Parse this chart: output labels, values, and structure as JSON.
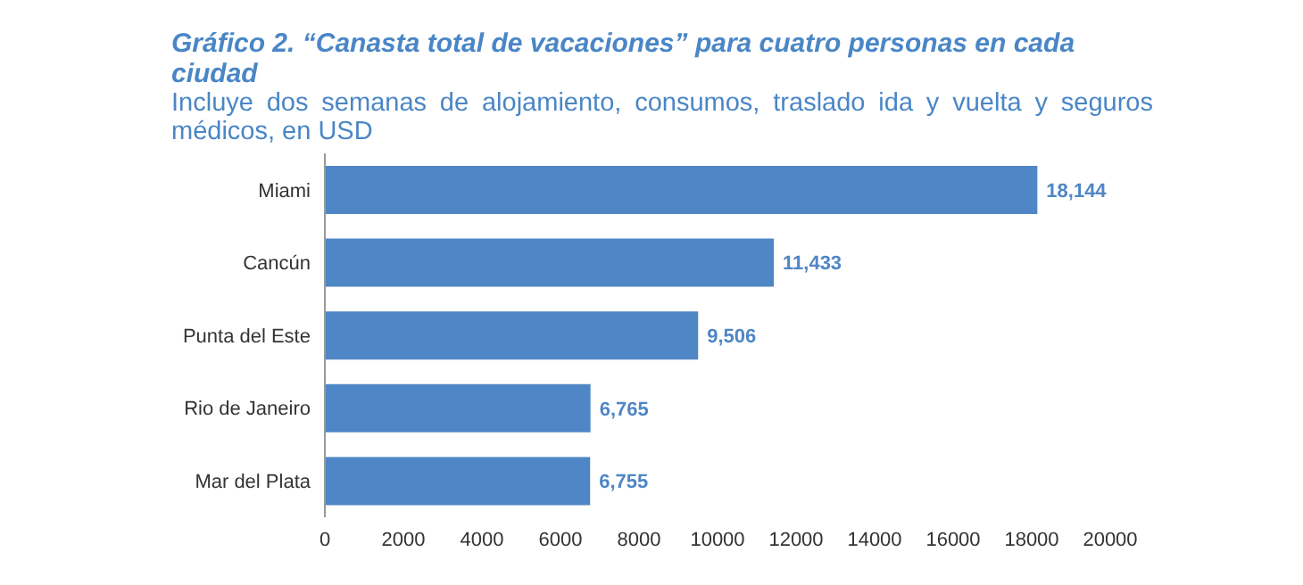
{
  "chart_data": {
    "type": "bar",
    "orientation": "horizontal",
    "title": "Gráfico 2. “Canasta total de vacaciones” para cuatro personas en cada ciudad",
    "subtitle": "Incluye dos semanas de alojamiento, consumos, traslado ida y vuelta y seguros médicos, en USD",
    "categories": [
      "Miami",
      "Cancún",
      "Punta del Este",
      "Rio de Janeiro",
      "Mar del Plata"
    ],
    "values": [
      18144,
      11433,
      9506,
      6765,
      6755
    ],
    "value_labels": [
      "18,144",
      "11,433",
      "9,506",
      "6,765",
      "6,755"
    ],
    "color": "#4f86c5",
    "xlim": [
      0,
      20000
    ],
    "xticks": [
      0,
      2000,
      4000,
      6000,
      8000,
      10000,
      12000,
      14000,
      16000,
      18000,
      20000
    ],
    "grid": false
  }
}
